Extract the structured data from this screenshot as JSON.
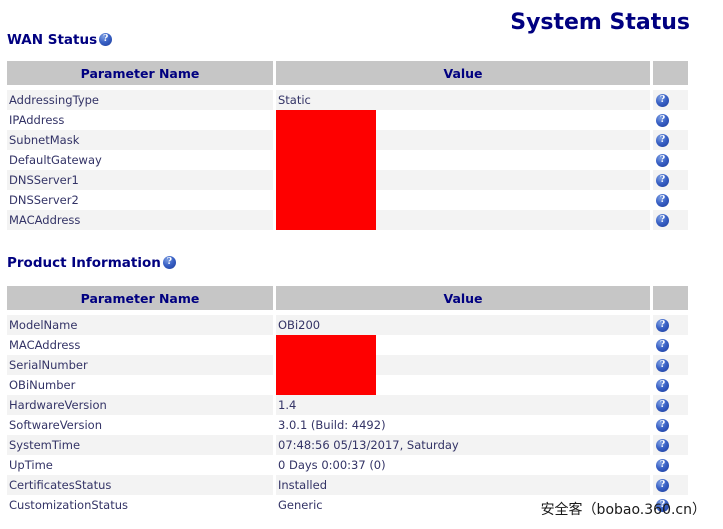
{
  "page_title": "System Status",
  "columns": {
    "param": "Parameter Name",
    "value": "Value"
  },
  "help_icon_glyph": "?",
  "watermark": "安全客（bobao.360.cn）",
  "colors": {
    "accent_navy": "#000080",
    "row_text": "#333366",
    "header_bg": "#c6c6c6",
    "stripe_bg": "#f3f3f3",
    "redaction_red": "#fe0000",
    "help_icon_blue": "#3a62c6"
  },
  "sections": [
    {
      "heading": "WAN Status",
      "rows": [
        {
          "param": "AddressingType",
          "value": "Static",
          "redacted": false
        },
        {
          "param": "IPAddress",
          "value": "",
          "redacted": true
        },
        {
          "param": "SubnetMask",
          "value": "",
          "redacted": true
        },
        {
          "param": "DefaultGateway",
          "value": "",
          "redacted": true
        },
        {
          "param": "DNSServer1",
          "value": "",
          "redacted": true
        },
        {
          "param": "DNSServer2",
          "value": "",
          "redacted": true
        },
        {
          "param": "MACAddress",
          "value": "",
          "redacted": true
        }
      ]
    },
    {
      "heading": "Product Information",
      "rows": [
        {
          "param": "ModelName",
          "value": "OBi200",
          "redacted": false
        },
        {
          "param": "MACAddress",
          "value": "",
          "redacted": true
        },
        {
          "param": "SerialNumber",
          "value": "",
          "redacted": true
        },
        {
          "param": "OBiNumber",
          "value": "",
          "redacted": true
        },
        {
          "param": "HardwareVersion",
          "value": "1.4",
          "redacted": false
        },
        {
          "param": "SoftwareVersion",
          "value": "3.0.1 (Build: 4492)",
          "redacted": false
        },
        {
          "param": "SystemTime",
          "value": "07:48:56 05/13/2017, Saturday",
          "redacted": false
        },
        {
          "param": "UpTime",
          "value": "0 Days 0:00:37 (0)",
          "redacted": false
        },
        {
          "param": "CertificatesStatus",
          "value": "Installed",
          "redacted": false
        },
        {
          "param": "CustomizationStatus",
          "value": "Generic",
          "redacted": false
        }
      ]
    }
  ]
}
